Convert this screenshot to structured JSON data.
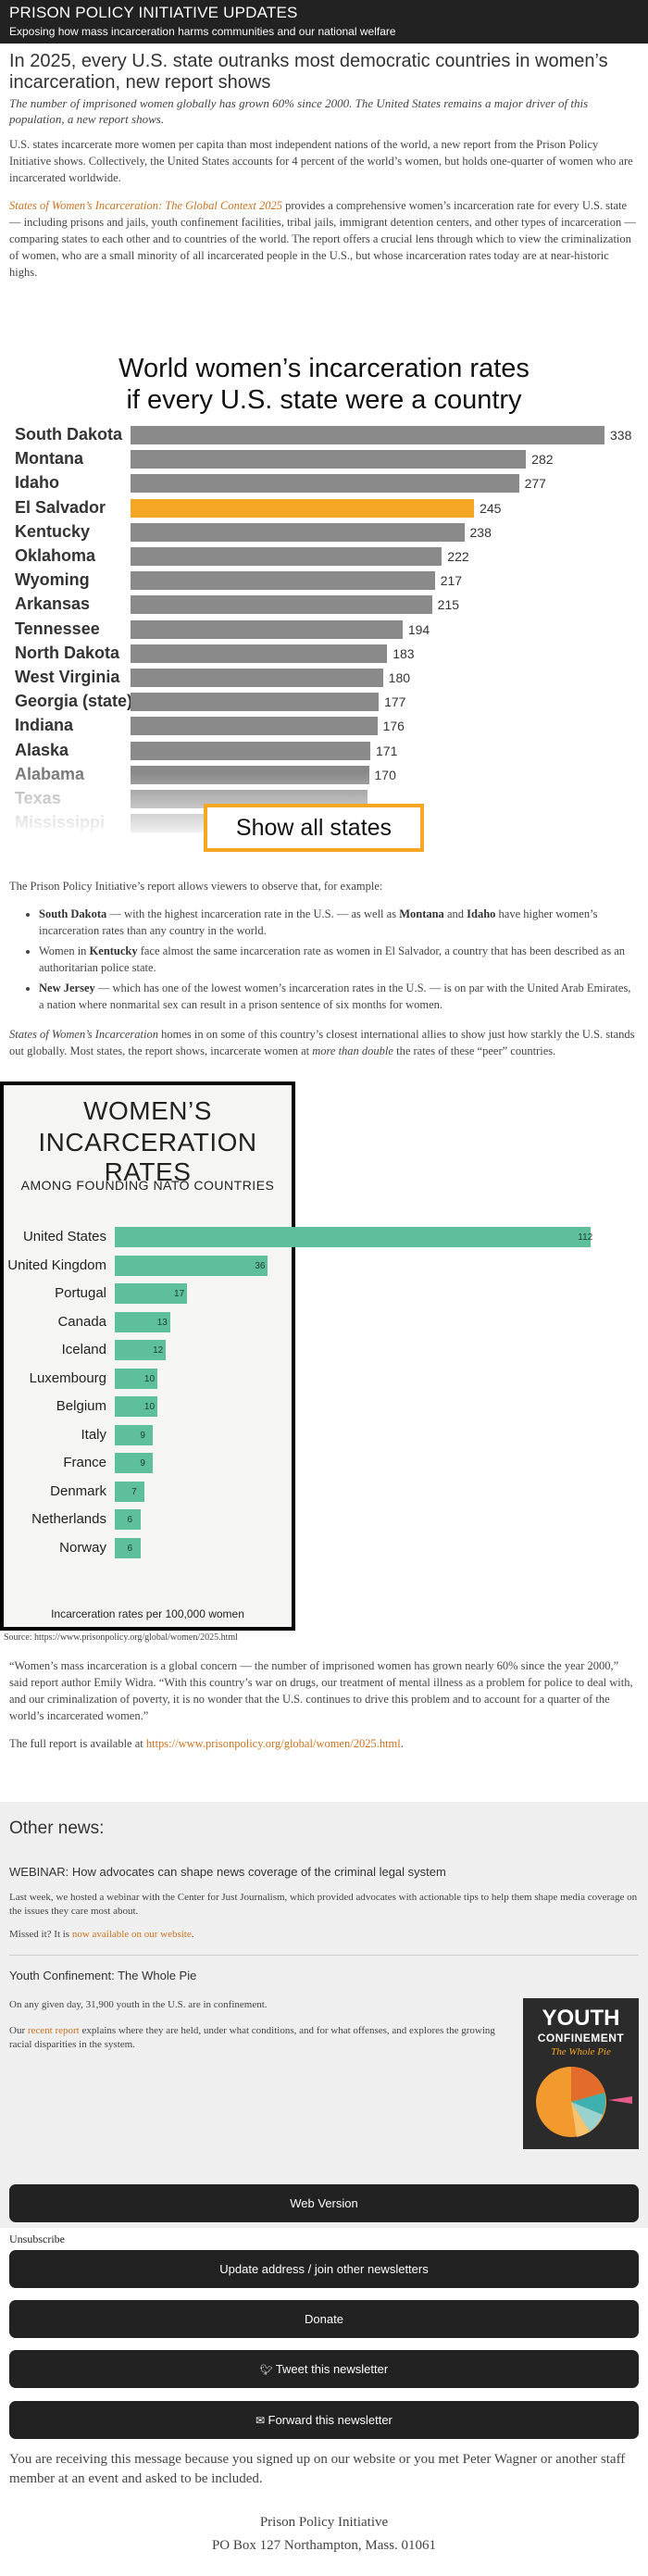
{
  "header": {
    "title": "PRISON POLICY INITIATIVE UPDATES",
    "subtitle": "Exposing how mass incarceration harms communities and our national welfare"
  },
  "headline": {
    "title": "In 2025, every U.S. state outranks most democratic countries in women’s incarceration, new report shows",
    "deck": "The number of imprisoned women globally has grown 60% since 2000. The United States remains a major driver of this population, a new report shows."
  },
  "body": {
    "p1": "U.S. states incarcerate more women per capita than most independent nations of the world, a new report from the Prison Policy Initiative shows. Collectively, the United States accounts for 4 percent of the world’s women, but holds one-quarter of women who are incarcerated worldwide.",
    "p2_link": "States of Women’s Incarceration: The Global Context 2025",
    "p2_rest": " provides a comprehensive women’s incarceration rate for every U.S. state — including prisons and jails, youth confinement facilities, tribal jails, immigrant detention centers, and other types of incarceration — comparing states to each other and to countries of the world. The report offers a crucial lens through which to view the criminalization of women, who are a small minority of all incarcerated people in the U.S., but whose incarceration rates today are at near-historic highs.",
    "p3": "The Prison Policy Initiative’s report allows viewers to observe that, for example:",
    "bullets": [
      {
        "b": "South Dakota",
        "t1": " — with the highest incarceration rate in the U.S. — as well as ",
        "b2": "Montana",
        "t2": " and ",
        "b3": "Idaho",
        "t3": " have higher women’s incarceration rates than any country in the world."
      },
      {
        "t0": "Women in ",
        "b": "Kentucky",
        "t1": " face almost the same incarceration rate as women in El Salvador, a country that has been described as an authoritarian police state."
      },
      {
        "b": "New Jersey",
        "t1": " — which has one of the lowest women’s incarceration rates in the U.S. — is on par with the United Arab Emirates, a nation where nonmarital sex can result in a prison sentence of six months for women."
      }
    ],
    "p4_italic": "States of Women’s Incarceration",
    "p4_mid": " homes in on some of this country’s closest international allies to show just how starkly the U.S. stands out globally. Most states, the report shows, incarcerate women at ",
    "p4_italic2": "more than double",
    "p4_end": " the rates of these “peer” countries.",
    "source": "Source: https://www.prisonpolicy.org/global/women/2025.html",
    "quote": "“Women’s mass incarceration is a global concern — the number of imprisoned women has grown nearly 60% since the year 2000,” said report author Emily Widra. “With this country’s war on drugs, our treatment of mental illness as a problem for police to deal with, and our criminalization of poverty, it is no wonder that the U.S. continues to drive this problem and to account for a quarter of the world’s incarcerated women.”",
    "full_report_prefix": "The full report is available at ",
    "full_report_link": "https://www.prisonpolicy.org/global/women/2025.html",
    "full_report_suffix": "."
  },
  "chart_data": [
    {
      "type": "bar",
      "orientation": "horizontal",
      "title": "World women’s incarceration rates if every U.S. state were a country",
      "categories": [
        "South Dakota",
        "Montana",
        "Idaho",
        "El Salvador",
        "Kentucky",
        "Oklahoma",
        "Wyoming",
        "Arkansas",
        "Tennessee",
        "North Dakota",
        "West Virginia",
        "Georgia (state)",
        "Indiana",
        "Alaska",
        "Alabama",
        "Texas",
        "Mississippi"
      ],
      "values": [
        338,
        282,
        277,
        245,
        238,
        222,
        217,
        215,
        194,
        183,
        180,
        177,
        176,
        171,
        170,
        null,
        null
      ],
      "highlight": "El Salvador",
      "highlight_color": "#f5a623",
      "bar_color": "#8a8a8a",
      "xlim": [
        0,
        338
      ],
      "button_label": "Show all states"
    },
    {
      "type": "bar",
      "orientation": "horizontal",
      "title": "WOMEN’S INCARCERATION RATES",
      "subtitle": "AMONG FOUNDING NATO COUNTRIES",
      "categories": [
        "United States",
        "United Kingdom",
        "Portugal",
        "Canada",
        "Iceland",
        "Luxembourg",
        "Belgium",
        "Italy",
        "France",
        "Denmark",
        "Netherlands",
        "Norway"
      ],
      "values": [
        112,
        36,
        17,
        13,
        12,
        10,
        10,
        9,
        9,
        7,
        6,
        6
      ],
      "bar_color": "#5dc09a",
      "xlabel": "Incarceration rates per 100,000 women",
      "xlim": [
        0,
        112
      ]
    }
  ],
  "other_news": {
    "heading": "Other news:",
    "items": [
      {
        "title": "WEBINAR: How advocates can shape news coverage of the criminal legal system",
        "p1": "Last week, we hosted a webinar with the Center for Just Journalism, which provided advocates with actionable tips to help them shape media coverage on the issues they care most about.",
        "p2_prefix": "Missed it? It is ",
        "p2_link": "now available on our website",
        "p2_suffix": "."
      },
      {
        "title": "Youth Confinement: The Whole Pie",
        "p1": "On any given day, 31,900 youth in the U.S. are in confinement.",
        "p2_prefix": "Our ",
        "p2_link": "recent report",
        "p2_suffix": " explains where they are held, under what conditions, and for what offenses, and explores the growing racial disparities in the system.",
        "cover_title1": "YOUTH",
        "cover_title2": "CONFINEMENT",
        "cover_subtitle": "The Whole Pie"
      }
    ]
  },
  "footer": {
    "web_version": "Web Version",
    "unsubscribe": "Unsubscribe",
    "update_address": "Update address / join other newsletters",
    "donate": "Donate",
    "tweet": "Tweet this newsletter",
    "forward": "Forward this newsletter",
    "closing": "You are receiving this message because you signed up on our website or you met Peter Wagner or another staff member at an event and asked to be included.",
    "org": "Prison Policy Initiative",
    "address": "PO Box 127 Northampton, Mass. 01061"
  },
  "colors": {
    "header_bg": "#222222",
    "link": "#c9731f",
    "highlight": "#f5a623",
    "nato_bar": "#5dc09a",
    "state_bar": "#8a8a8a"
  },
  "icons": {
    "tweet": "twitter-bird-icon",
    "forward": "envelope-forward-icon"
  }
}
